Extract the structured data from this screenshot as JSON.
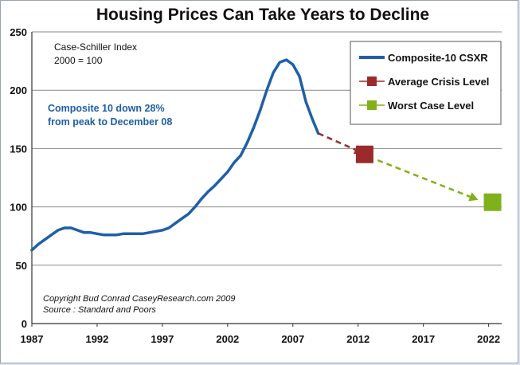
{
  "chart_data": {
    "type": "line",
    "title": "Housing Prices Can Take Years to Decline",
    "xlabel": "",
    "ylabel": "",
    "xlim": [
      1987,
      2023
    ],
    "ylim": [
      0,
      250
    ],
    "x_ticks": [
      "1987",
      "1992",
      "1997",
      "2002",
      "2007",
      "2012",
      "2017",
      "2022"
    ],
    "y_ticks": [
      "0",
      "50",
      "100",
      "150",
      "200",
      "250"
    ],
    "grid": "horizontal",
    "legend_position": "top-right",
    "series": [
      {
        "name": "Composite-10 CSXR",
        "color": "#1f5fa8",
        "x": [
          1987.0,
          1987.5,
          1988.0,
          1988.5,
          1989.0,
          1989.5,
          1990.0,
          1990.5,
          1991.0,
          1991.5,
          1992.0,
          1992.5,
          1993.0,
          1993.5,
          1994.0,
          1994.5,
          1995.0,
          1995.5,
          1996.0,
          1996.5,
          1997.0,
          1997.5,
          1998.0,
          1998.5,
          1999.0,
          1999.5,
          2000.0,
          2000.5,
          2001.0,
          2001.5,
          2002.0,
          2002.5,
          2003.0,
          2003.5,
          2004.0,
          2004.5,
          2005.0,
          2005.5,
          2006.0,
          2006.5,
          2007.0,
          2007.5,
          2008.0,
          2008.5,
          2008.95
        ],
        "values": [
          63,
          68,
          72,
          76,
          80,
          82,
          82,
          80,
          78,
          78,
          77,
          76,
          76,
          76,
          77,
          77,
          77,
          77,
          78,
          79,
          80,
          82,
          86,
          90,
          94,
          100,
          107,
          113,
          118,
          124,
          130,
          138,
          144,
          155,
          168,
          183,
          200,
          215,
          224,
          226,
          222,
          212,
          190,
          175,
          163
        ]
      }
    ],
    "markers": [
      {
        "name": "Average Crisis Level",
        "x": 2012.5,
        "value": 145,
        "color": "#9b2b2b"
      },
      {
        "name": "Worst Case Level",
        "x": 2022.3,
        "value": 104,
        "color": "#7fb11b"
      }
    ],
    "projections": [
      {
        "from_x": 2008.95,
        "from_value": 163,
        "to_x": 2012.4,
        "to_value": 146,
        "color": "#9b2b2b"
      },
      {
        "from_x": 2013.5,
        "from_value": 140,
        "to_x": 2021.2,
        "to_value": 106,
        "color": "#7fb11b"
      }
    ],
    "annotations": {
      "index_line1": "Case-Schiller Index",
      "index_line2": "2000 = 100",
      "note_line1": "Composite 10 down 28%",
      "note_line2": "from peak to December 08",
      "credit_line1": "Copyright Bud Conrad CaseyResearch.com 2009",
      "credit_line2": "Source : Standard and Poors"
    }
  }
}
